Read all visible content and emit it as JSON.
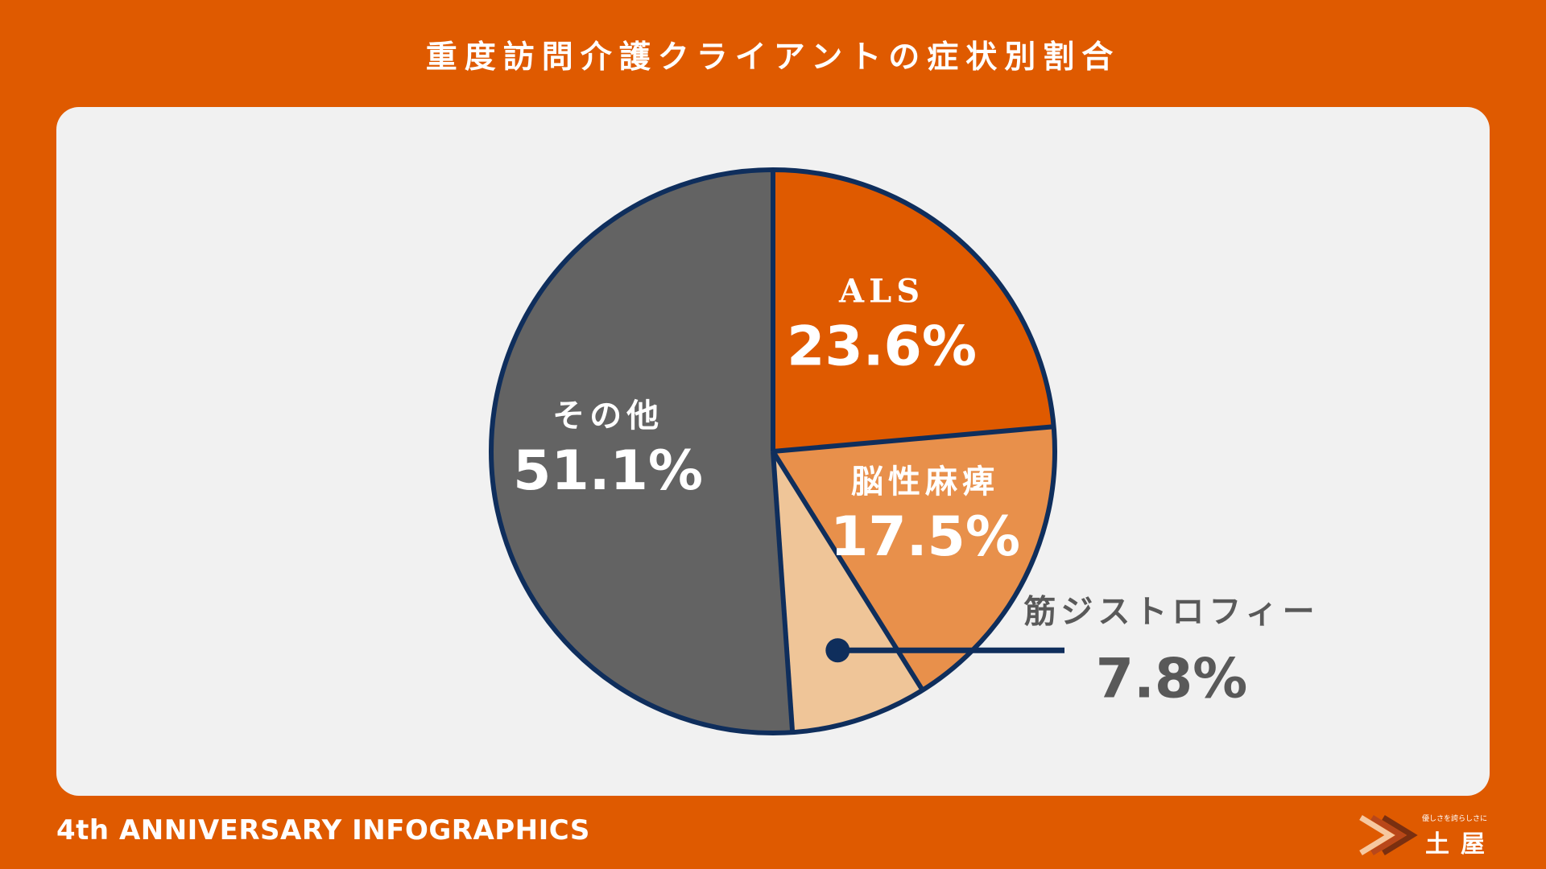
{
  "title": "重度訪問介護クライアントの症状別割合",
  "footer": {
    "text": "4th ANNIVERSARY INFOGRAPHICS",
    "logo_tagline": "優しさを誇らしさに",
    "logo_name": "土屋"
  },
  "colors": {
    "background": "#df5a00",
    "panel": "#f1f1f1",
    "outline": "#0f2e5c"
  },
  "chart_data": {
    "type": "pie",
    "title": "重度訪問介護クライアントの症状別割合",
    "unit": "%",
    "start_angle_deg": 0,
    "direction": "clockwise",
    "slices": [
      {
        "name": "ALS",
        "value": 23.6,
        "label": "23.6%",
        "color": "#df5a00"
      },
      {
        "name": "脳性麻痺",
        "value": 17.5,
        "label": "17.5%",
        "color": "#e8904b"
      },
      {
        "name": "筋ジストロフィー",
        "value": 7.8,
        "label": "7.8%",
        "color": "#efc598",
        "callout": true
      },
      {
        "name": "その他",
        "value": 51.1,
        "label": "51.1%",
        "color": "#636363"
      }
    ]
  }
}
